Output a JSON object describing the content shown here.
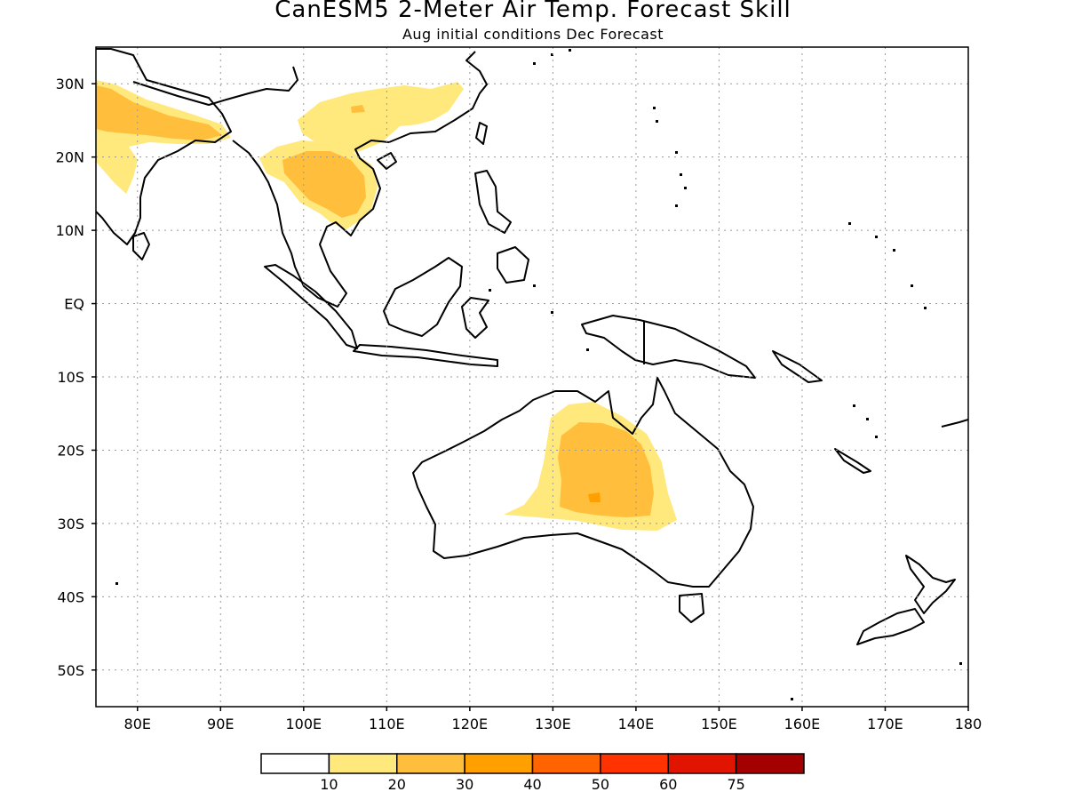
{
  "title": "CanESM5 2-Meter Air Temp. Forecast Skill",
  "subtitle": "Aug initial conditions  Dec Forecast",
  "map": {
    "lon_range": [
      75,
      180
    ],
    "lat_range": [
      -55,
      35
    ],
    "lon_ticks": [
      {
        "value": 80,
        "label": "80E"
      },
      {
        "value": 90,
        "label": "90E"
      },
      {
        "value": 100,
        "label": "100E"
      },
      {
        "value": 110,
        "label": "110E"
      },
      {
        "value": 120,
        "label": "120E"
      },
      {
        "value": 130,
        "label": "130E"
      },
      {
        "value": 140,
        "label": "140E"
      },
      {
        "value": 150,
        "label": "150E"
      },
      {
        "value": 160,
        "label": "160E"
      },
      {
        "value": 170,
        "label": "170E"
      },
      {
        "value": 180,
        "label": "180"
      }
    ],
    "lat_ticks": [
      {
        "value": 30,
        "label": "30N"
      },
      {
        "value": 20,
        "label": "20N"
      },
      {
        "value": 10,
        "label": "10N"
      },
      {
        "value": 0,
        "label": "EQ"
      },
      {
        "value": -10,
        "label": "10S"
      },
      {
        "value": -20,
        "label": "20S"
      },
      {
        "value": -30,
        "label": "30S"
      },
      {
        "value": -40,
        "label": "40S"
      },
      {
        "value": -50,
        "label": "50S"
      }
    ],
    "grid": "dotted"
  },
  "colorbar": {
    "colors": [
      "#ffffff",
      "#ffe87c",
      "#ffbe3c",
      "#ffa000",
      "#ff6400",
      "#ff3200",
      "#e11400",
      "#a50000"
    ],
    "labels": [
      "10",
      "20",
      "30",
      "40",
      "50",
      "60",
      "75"
    ]
  }
}
